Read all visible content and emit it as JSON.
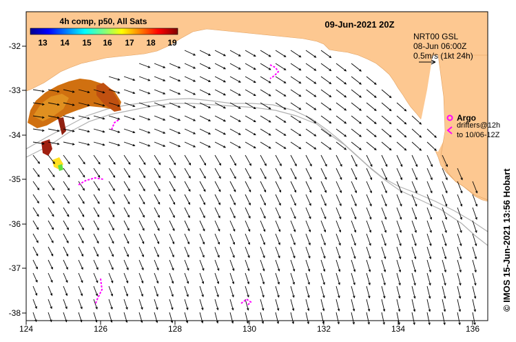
{
  "map": {
    "date_title": "09-Jun-2021 20Z",
    "x_ticks": [
      "124",
      "126",
      "128",
      "130",
      "132",
      "134",
      "136"
    ],
    "y_ticks": [
      "-32",
      "-33",
      "-34",
      "-35",
      "-36",
      "-37",
      "-38"
    ],
    "credit": "© IMOS 15-Jun-2021 13:56 Hobart",
    "colors": {
      "land": "#fdc891",
      "ocean": "#ffffff",
      "vectors": "#000000",
      "drifters": "#ff00ff",
      "bathymetry": "#b0b0b0"
    }
  },
  "sst_colorbar": {
    "title": "4h comp, p50, All Sats",
    "labels": [
      "13",
      "14",
      "15",
      "16",
      "17",
      "18",
      "19"
    ],
    "colormap": "jet"
  },
  "current_info": {
    "line1": "NRT00 GSL",
    "line2": "08-Jun 06:00Z",
    "line3": "0.5m/s (1kt 24h)"
  },
  "argo_legend": {
    "label": "Argo"
  },
  "drifter_legend": {
    "line1": "drifters@12h",
    "line2": "to 10/06-12Z"
  }
}
